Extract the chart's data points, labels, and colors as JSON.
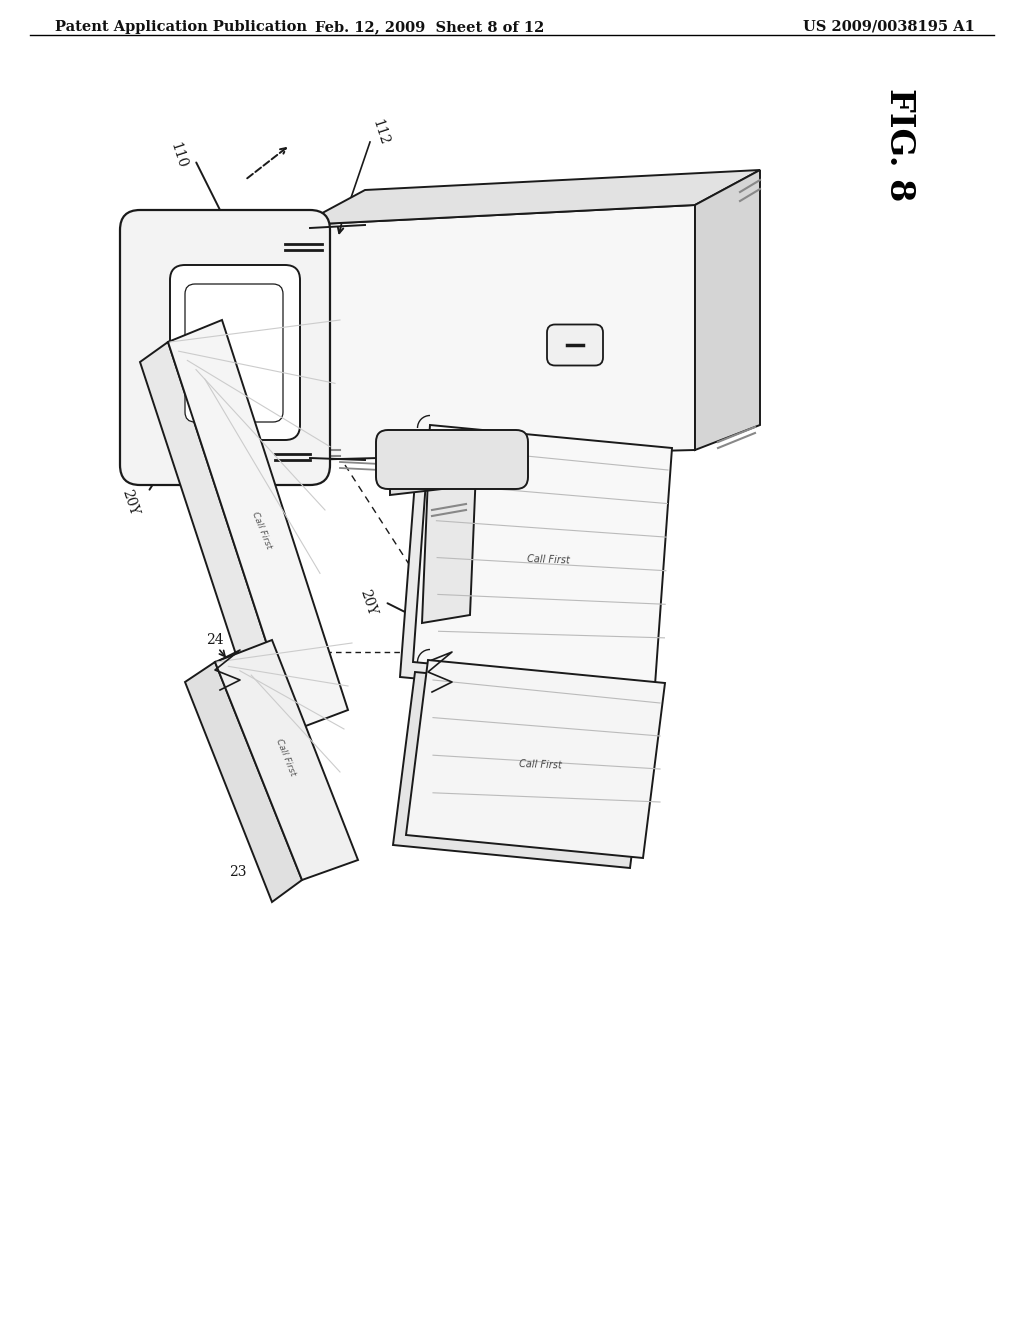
{
  "header_left": "Patent Application Publication",
  "header_center": "Feb. 12, 2009  Sheet 8 of 12",
  "header_right": "US 2009/0038195 A1",
  "fig_label": "FIG. 8",
  "bg_color": "#ffffff",
  "line_color": "#1a1a1a",
  "header_fontsize": 10.5,
  "fig_fontsize": 24,
  "ref_fontsize": 10
}
